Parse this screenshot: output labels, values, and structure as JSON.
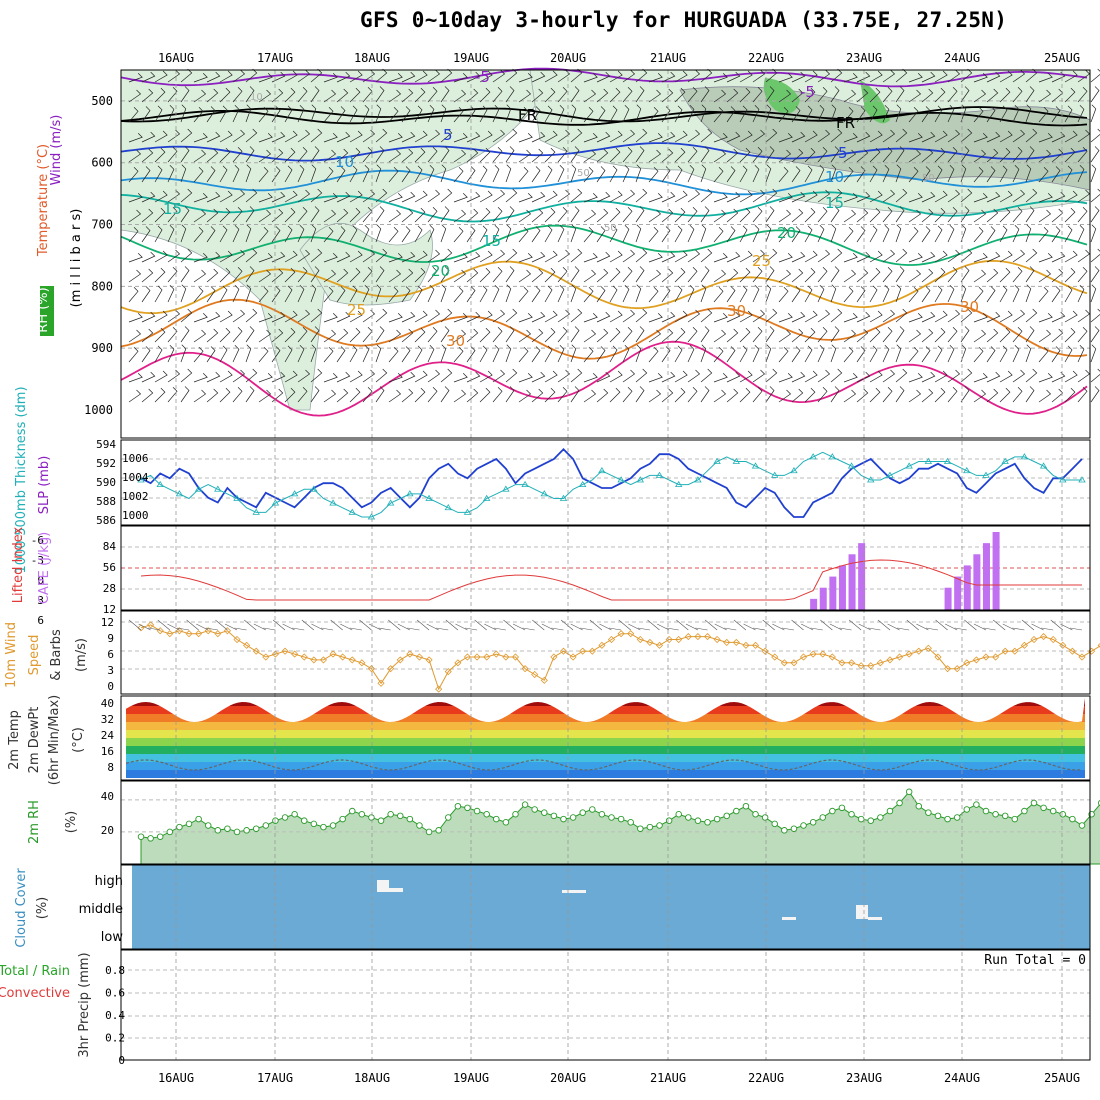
{
  "title": "GFS 0~10day 3-hourly for HURGUADA (33.75E, 27.25N)",
  "days": [
    "16AUG",
    "17AUG",
    "18AUG",
    "19AUG",
    "20AUG",
    "21AUG",
    "22AUG",
    "23AUG",
    "24AUG",
    "25AUG"
  ],
  "colors": {
    "wind": "#8b1fc0",
    "temp": "#e05a2a",
    "rh_green": "#2aa52a",
    "slp": "#2040d0",
    "thick": "#20b0b8",
    "li": "#e03a3a",
    "cape": "#c070f0",
    "wind10": "#e09a30",
    "rh2": "#2a9a2a",
    "cloud": "#6aaad4"
  },
  "panels": {
    "upper": {
      "label_wind": "Wind (m/s)",
      "label_temp": "Temperature (°C)",
      "label_rh": "RH (%)",
      "label_mb": "(m i l l i b a r s)",
      "ticks": [
        "500",
        "600",
        "700",
        "800",
        "900",
        "1000"
      ],
      "freezing_label": "FR",
      "contour_labels": [
        {
          "text": "-5",
          "color": "#8b1fc0"
        },
        {
          "text": "-5",
          "color": "#8b1fc0"
        },
        {
          "text": "FR",
          "color": "#000000"
        },
        {
          "text": "FR",
          "color": "#000000"
        },
        {
          "text": "5",
          "color": "#2040d0"
        },
        {
          "text": "5",
          "color": "#2040d0"
        },
        {
          "text": "10",
          "color": "#2090d8"
        },
        {
          "text": "10",
          "color": "#2090d8"
        },
        {
          "text": "15",
          "color": "#10b0a0"
        },
        {
          "text": "15",
          "color": "#10b0a0"
        },
        {
          "text": "15",
          "color": "#10b0a0"
        },
        {
          "text": "20",
          "color": "#10b070"
        },
        {
          "text": "20",
          "color": "#10b070"
        },
        {
          "text": "25",
          "color": "#e0a020"
        },
        {
          "text": "25",
          "color": "#e0a020"
        },
        {
          "text": "30",
          "color": "#e07a20"
        },
        {
          "text": "30",
          "color": "#e07a20"
        },
        {
          "text": "30",
          "color": "#e07a20"
        },
        {
          "text": "10",
          "color": "#aaaaaa"
        },
        {
          "text": "50",
          "color": "#aaaaaa"
        },
        {
          "text": "50",
          "color": "#aaaaaa"
        },
        {
          "text": "50",
          "color": "#aaaaaa"
        }
      ]
    },
    "slp": {
      "label_thick": "1000-500mb Thickness (dm)",
      "label_slp": "SLP (mb)",
      "ticks_left": [
        "594",
        "592",
        "590",
        "588",
        "586"
      ],
      "ticks_right": [
        "1006",
        "1004",
        "1002",
        "1000"
      ]
    },
    "cape": {
      "label_li": "Lifted Index",
      "label_cape": "CAPE (J/kg)",
      "ticks_left": [
        "-6",
        "-3",
        "0",
        "3",
        "6"
      ],
      "ticks_right": [
        "84",
        "56",
        "28",
        "12"
      ]
    },
    "wind10": {
      "label1": "10m Wind",
      "label2": "Speed",
      "label3": "& Barbs",
      "label_unit": "(m/s)",
      "ticks": [
        "12",
        "9",
        "6",
        "3",
        "0"
      ]
    },
    "temp2m": {
      "label1": "2m Temp",
      "label2": "2m DewPt",
      "label3": "(6hr Min/Max)",
      "label_unit": "(°C)",
      "ticks": [
        "40",
        "32",
        "24",
        "16",
        "8"
      ]
    },
    "rh2m": {
      "label": "2m RH",
      "label_unit": "(%)",
      "ticks": [
        "40",
        "20"
      ]
    },
    "cloud": {
      "label": "Cloud Cover",
      "label_unit": "(%)",
      "levels": [
        "high",
        "middle",
        "low"
      ]
    },
    "precip": {
      "label_total": "Total / Rain",
      "label_conv": "Convective",
      "label_main": "3hr Precip (mm)",
      "run_total": "Run Total = 0",
      "ticks": [
        "0.8",
        "0.6",
        "0.4",
        "0.2",
        "0"
      ]
    }
  },
  "chart_data": [
    {
      "type": "line",
      "title": "1000-500mb Thickness (dm) & SLP (mb)",
      "series": [
        {
          "name": "SLP",
          "values": [
            1004,
            1003.5,
            1004.5,
            1004,
            1005,
            1004.5,
            1003,
            1002,
            1001.5,
            1003,
            1002,
            1001.5,
            1001,
            1002.5,
            1002,
            1001.5,
            1001,
            1002,
            1003,
            1003.5,
            1003.5,
            1003,
            1002,
            1001,
            1001.5,
            1002.5,
            1003,
            1002,
            1001,
            1002,
            1004,
            1005,
            1005.5,
            1004.5,
            1004,
            1005,
            1005.5,
            1006,
            1005,
            1003.5,
            1004.5,
            1005,
            1005.5,
            1006,
            1007,
            1006,
            1004,
            1003.5,
            1003,
            1003,
            1003.5,
            1004,
            1005,
            1005.5,
            1006.5,
            1006.5,
            1006,
            1005,
            1004.5,
            1004,
            1003.5,
            1003,
            1001.5,
            1001,
            1002,
            1003,
            1002.5,
            1001,
            1000,
            1000,
            1001.5,
            1002,
            1002.5,
            1004,
            1005,
            1005.5,
            1006,
            1005,
            1004,
            1003.5,
            1004,
            1005,
            1005,
            1005.5,
            1005,
            1004.5,
            1003,
            1002.5,
            1003.5,
            1004.5,
            1005,
            1005.5,
            1004,
            1003,
            1002.5,
            1004,
            1004,
            1005,
            1006
          ]
        },
        {
          "name": "Thickness",
          "values": [
            590,
            590.5,
            589.5,
            589,
            588.5,
            588,
            589,
            589.5,
            589,
            588.5,
            588,
            587,
            586.5,
            586.5,
            587.5,
            588,
            588.5,
            589,
            589,
            588,
            587.5,
            587,
            586.5,
            586,
            586,
            586.5,
            587.5,
            588,
            588.5,
            588.5,
            588,
            587.5,
            587,
            586.5,
            586.5,
            587,
            588,
            588.5,
            589,
            589.5,
            589.5,
            589,
            588.5,
            588,
            588,
            589,
            589.5,
            590,
            591,
            590.5,
            590,
            589.5,
            590,
            590.5,
            590.5,
            590,
            589.5,
            589.5,
            590,
            591,
            592,
            592.5,
            592,
            592,
            591.5,
            591,
            590.5,
            590.5,
            591,
            592,
            592.5,
            593,
            592.5,
            592,
            591.5,
            590.5,
            590,
            590,
            590.5,
            591,
            591.5,
            592,
            592,
            592,
            592,
            591.5,
            591,
            590.5,
            590.5,
            591,
            592,
            592.5,
            592.5,
            592,
            591.5,
            590.5,
            590,
            590,
            590
          ]
        }
      ]
    },
    {
      "type": "bar",
      "title": "CAPE (J/kg)",
      "values": [
        0,
        0,
        0,
        0,
        0,
        0,
        0,
        0,
        0,
        0,
        0,
        0,
        0,
        0,
        0,
        0,
        0,
        0,
        0,
        0,
        0,
        0,
        0,
        0,
        0,
        0,
        0,
        0,
        0,
        0,
        0,
        0,
        0,
        0,
        0,
        0,
        0,
        0,
        0,
        0,
        0,
        0,
        0,
        0,
        0,
        0,
        0,
        0,
        0,
        0,
        0,
        0,
        0,
        0,
        0,
        0,
        0,
        0,
        0,
        0,
        0,
        0,
        0,
        0,
        0,
        0,
        0,
        0,
        0,
        0,
        12,
        24,
        36,
        48,
        60,
        72,
        0,
        0,
        0,
        0,
        0,
        0,
        0,
        0,
        24,
        36,
        48,
        60,
        72,
        84,
        0,
        0,
        0,
        0,
        0,
        0,
        0,
        0,
        0
      ]
    },
    {
      "type": "line",
      "title": "10m Wind Speed (m/s)",
      "values": [
        11,
        11.5,
        10.5,
        10,
        10.5,
        10,
        10,
        10.5,
        10,
        10.5,
        9,
        8,
        7,
        6,
        6.5,
        7,
        6.5,
        6,
        5.5,
        5.5,
        6.5,
        6,
        5.5,
        5,
        4,
        1.5,
        4,
        5.5,
        6.5,
        6,
        5.5,
        0.5,
        3.5,
        5,
        6,
        6,
        6,
        6.5,
        6,
        6,
        4,
        3,
        2,
        6,
        7,
        6,
        7,
        7,
        8,
        9,
        10,
        10,
        9,
        8.5,
        8,
        9,
        9,
        9.5,
        9.5,
        9.5,
        9,
        8.5,
        8.5,
        8,
        8,
        7,
        6,
        5,
        5,
        6,
        6.5,
        6.5,
        6,
        5,
        5,
        4.5,
        4.5,
        5,
        5.5,
        6,
        6.5,
        7,
        7.5,
        6,
        4,
        4,
        5,
        5.5,
        6,
        6,
        7,
        7,
        8,
        9,
        9.5,
        9,
        8,
        7,
        6,
        7,
        8
      ]
    },
    {
      "type": "line",
      "title": "2m RH (%)",
      "values": [
        17,
        16,
        17,
        20,
        23,
        25,
        28,
        24,
        21,
        22,
        20,
        21,
        22,
        24,
        27,
        29,
        31,
        27,
        25,
        23,
        24,
        28,
        33,
        31,
        29,
        27,
        31,
        30,
        28,
        24,
        20,
        21,
        29,
        36,
        35,
        33,
        31,
        28,
        26,
        31,
        37,
        34,
        32,
        30,
        28,
        29,
        32,
        34,
        31,
        29,
        28,
        26,
        22,
        23,
        24,
        27,
        31,
        29,
        27,
        26,
        28,
        30,
        33,
        36,
        31,
        29,
        25,
        21,
        22,
        24,
        26,
        29,
        33,
        35,
        31,
        28,
        27,
        29,
        33,
        38,
        45,
        36,
        32,
        30,
        28,
        29,
        34,
        37,
        33,
        31,
        30,
        28,
        33,
        38,
        35,
        33,
        31,
        28,
        24,
        31,
        38,
        36
      ]
    },
    {
      "type": "table",
      "title": "Cloud Cover",
      "levels": [
        "high",
        "middle",
        "low"
      ],
      "notes": "Small cloud patches near 18AUG (high), 20AUG (high), 22AUG (low), 23AUG (middle/low)"
    },
    {
      "type": "line",
      "title": "3hr Precip (mm)",
      "values": [
        0
      ],
      "run_total": "Run Total = 0"
    }
  ]
}
